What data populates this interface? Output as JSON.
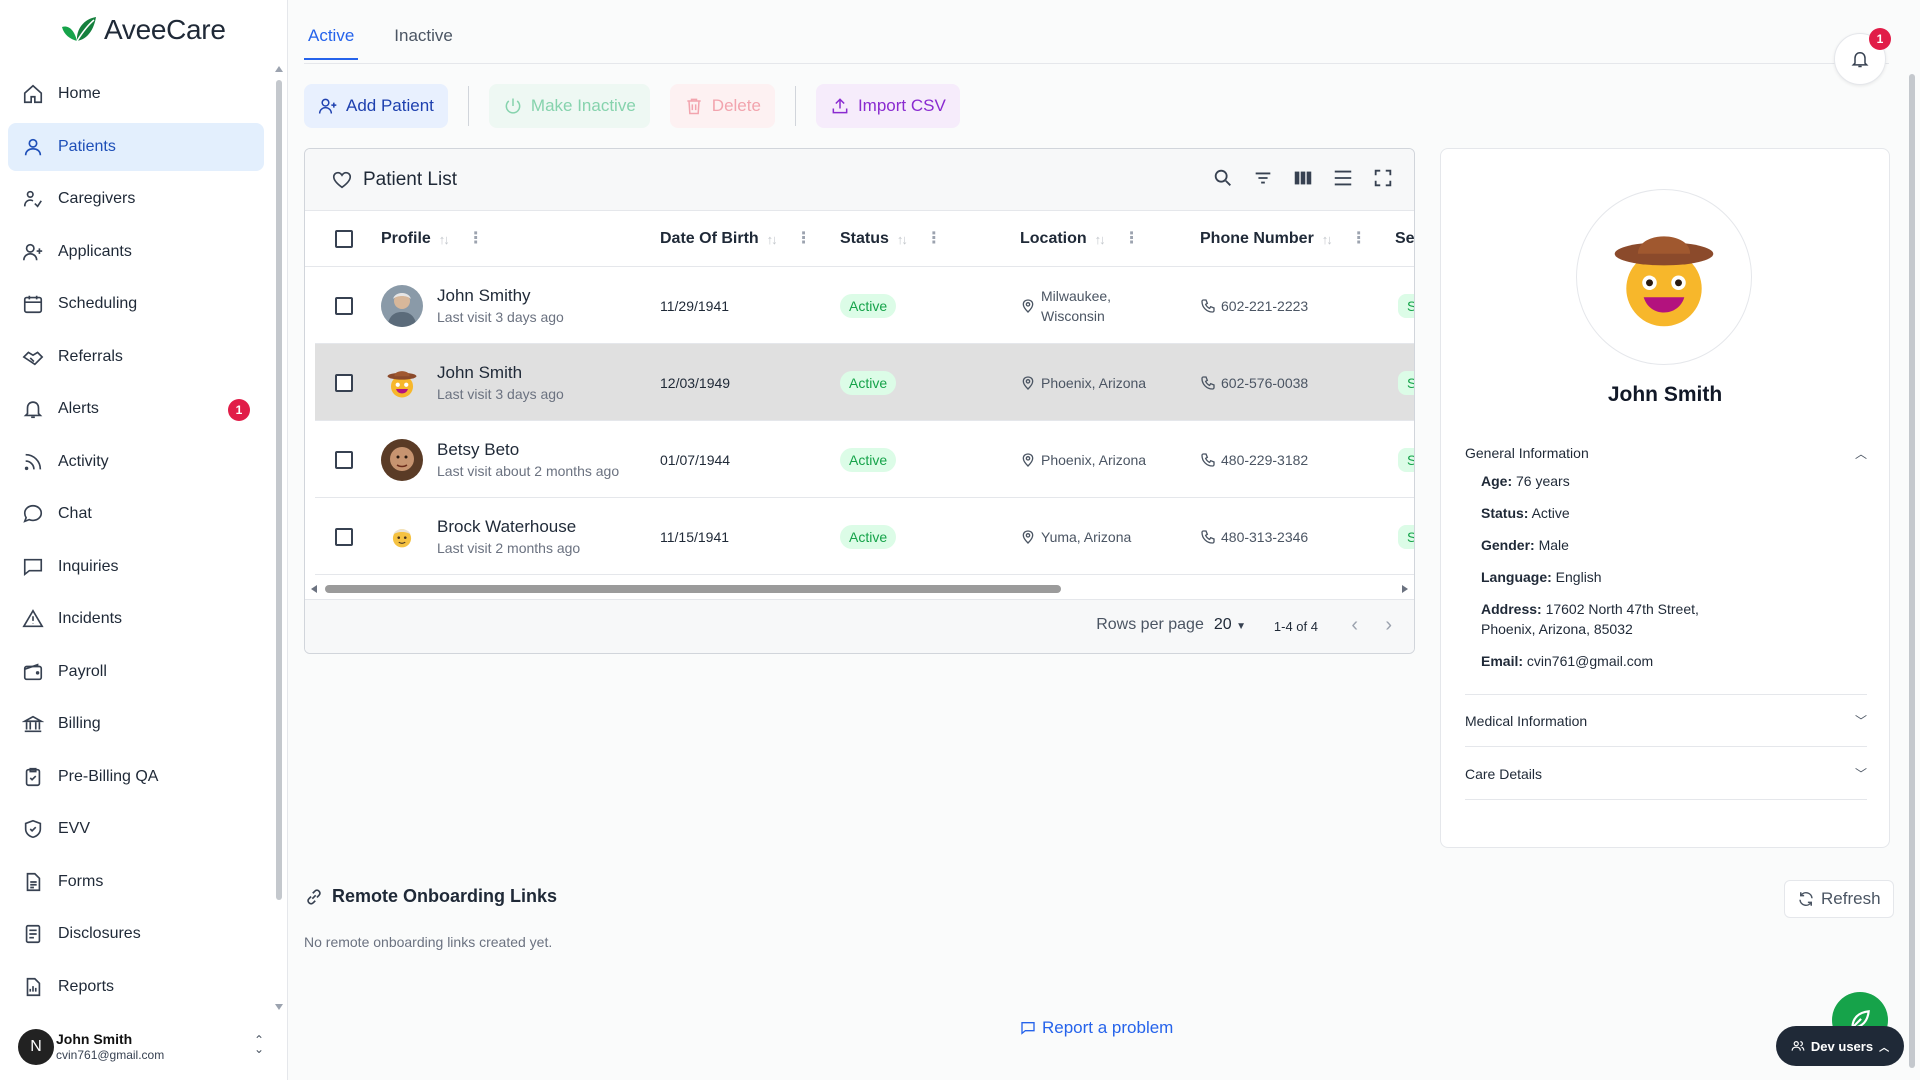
{
  "app": {
    "name": "AveeCare"
  },
  "colors": {
    "accent": "#2563eb",
    "active_nav_bg": "#e3effd",
    "alert_red": "#e11d48",
    "success": "#16a34a"
  },
  "sidebar": {
    "items": [
      {
        "label": "Home",
        "icon": "home-icon"
      },
      {
        "label": "Patients",
        "icon": "user-icon",
        "active": true
      },
      {
        "label": "Caregivers",
        "icon": "caregiver-icon"
      },
      {
        "label": "Applicants",
        "icon": "user-plus-icon"
      },
      {
        "label": "Scheduling",
        "icon": "calendar-icon"
      },
      {
        "label": "Referrals",
        "icon": "handshake-icon"
      },
      {
        "label": "Alerts",
        "icon": "bell-icon",
        "badge": "1"
      },
      {
        "label": "Activity",
        "icon": "rss-icon"
      },
      {
        "label": "Chat",
        "icon": "chat-bubble-icon"
      },
      {
        "label": "Inquiries",
        "icon": "message-square-icon"
      },
      {
        "label": "Incidents",
        "icon": "warning-icon"
      },
      {
        "label": "Payroll",
        "icon": "wallet-icon"
      },
      {
        "label": "Billing",
        "icon": "bank-icon"
      },
      {
        "label": "Pre-Billing QA",
        "icon": "clipboard-check-icon"
      },
      {
        "label": "EVV",
        "icon": "shield-check-icon"
      },
      {
        "label": "Forms",
        "icon": "file-text-icon"
      },
      {
        "label": "Disclosures",
        "icon": "document-icon"
      },
      {
        "label": "Reports",
        "icon": "report-icon"
      }
    ],
    "user": {
      "initial": "N",
      "name": "John Smith",
      "email": "cvin761@gmail.com"
    }
  },
  "tabs": [
    {
      "label": "Active",
      "active": true
    },
    {
      "label": "Inactive",
      "active": false
    }
  ],
  "notifications": {
    "count": "1"
  },
  "toolbar": {
    "add_label": "Add Patient",
    "inactive_label": "Make Inactive",
    "delete_label": "Delete",
    "import_label": "Import CSV"
  },
  "patient_list": {
    "title": "Patient List",
    "columns": [
      "Profile",
      "Date Of Birth",
      "Status",
      "Location",
      "Phone Number",
      "Se"
    ],
    "rows": [
      {
        "name": "John Smithy",
        "visit": "Last visit 3 days ago",
        "dob": "11/29/1941",
        "status": "Active",
        "location": "Milwaukee,\nWisconsin",
        "phone": "602-221-2223",
        "service": "S",
        "avatar": "photo-avatar-1",
        "selected": false
      },
      {
        "name": "John Smith",
        "visit": "Last visit 3 days ago",
        "dob": "12/03/1949",
        "status": "Active",
        "location": "Phoenix, Arizona",
        "phone": "602-576-0038",
        "service": "S",
        "avatar": "cowboy-emoji-avatar",
        "selected": true
      },
      {
        "name": "Betsy Beto",
        "visit": "Last visit about 2 months ago",
        "dob": "01/07/1944",
        "status": "Active",
        "location": "Phoenix, Arizona",
        "phone": "480-229-3182",
        "service": "S",
        "avatar": "photo-avatar-2",
        "selected": false
      },
      {
        "name": "Brock Waterhouse",
        "visit": "Last visit 2 months ago",
        "dob": "11/15/1941",
        "status": "Active",
        "location": "Yuma, Arizona",
        "phone": "480-313-2346",
        "service": "S",
        "avatar": "elder-emoji-avatar",
        "selected": false
      }
    ],
    "footer": {
      "rows_per_page_label": "Rows per page",
      "rows_per_page": "20",
      "range": "1-4 of 4"
    }
  },
  "detail": {
    "name": "John Smith",
    "sections": {
      "general": "General Information",
      "medical": "Medical Information",
      "care": "Care Details"
    },
    "general_info": {
      "age_label": "Age:",
      "age": "76 years",
      "status_label": "Status:",
      "status": "Active",
      "gender_label": "Gender:",
      "gender": "Male",
      "language_label": "Language:",
      "language": "English",
      "address_label": "Address:",
      "address": "17602 North 47th Street, Phoenix, Arizona, 85032",
      "email_label": "Email:",
      "email": "cvin761@gmail.com"
    }
  },
  "remote_onboarding": {
    "title": "Remote Onboarding Links",
    "empty": "No remote onboarding links created yet.",
    "refresh_label": "Refresh"
  },
  "report_label": "Report a problem",
  "dev_users_label": "Dev users"
}
